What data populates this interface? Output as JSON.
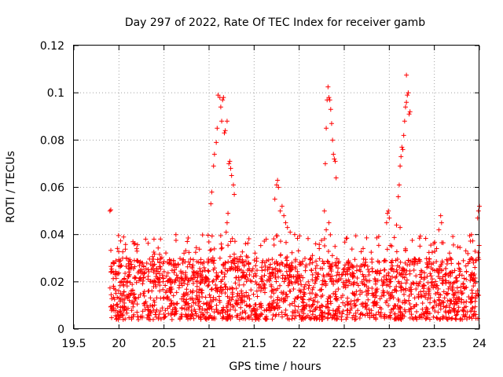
{
  "chart_data": {
    "type": "scatter",
    "title": "Day 297 of 2022, Rate Of TEC Index for receiver gamb",
    "xlabel": "GPS time / hours",
    "ylabel": "ROTI / TECUs",
    "xlim": [
      19.5,
      24
    ],
    "ylim": [
      0,
      0.12
    ],
    "xticks": [
      "19.5",
      "20",
      "20.5",
      "21",
      "21.5",
      "22",
      "22.5",
      "23",
      "23.5",
      "24"
    ],
    "yticks": [
      "0",
      "0.02",
      "0.04",
      "0.06",
      "0.08",
      "0.1",
      "0.12"
    ],
    "grid": true,
    "marker": "+",
    "color": "#ff0000",
    "series": [
      {
        "name": "ROTI",
        "description_bands": [
          {
            "x_from": 19.9,
            "x_to": 24.0,
            "y_min": 0.004,
            "y_max": 0.03,
            "density": "dense"
          },
          {
            "x_from": 19.9,
            "x_to": 24.0,
            "y_min": 0.02,
            "y_max": 0.04,
            "density": "sparse"
          }
        ],
        "points": [
          [
            19.9,
            0.05
          ],
          [
            19.91,
            0.0505
          ],
          [
            21.02,
            0.053
          ],
          [
            21.03,
            0.058
          ],
          [
            21.05,
            0.069
          ],
          [
            21.06,
            0.074
          ],
          [
            21.08,
            0.079
          ],
          [
            21.09,
            0.085
          ],
          [
            21.1,
            0.099
          ],
          [
            21.12,
            0.098
          ],
          [
            21.13,
            0.094
          ],
          [
            21.14,
            0.088
          ],
          [
            21.15,
            0.097
          ],
          [
            21.16,
            0.098
          ],
          [
            21.17,
            0.083
          ],
          [
            21.18,
            0.084
          ],
          [
            21.2,
            0.088
          ],
          [
            21.21,
            0.049
          ],
          [
            21.22,
            0.07
          ],
          [
            21.23,
            0.071
          ],
          [
            21.24,
            0.068
          ],
          [
            21.25,
            0.065
          ],
          [
            21.27,
            0.061
          ],
          [
            21.28,
            0.057
          ],
          [
            21.2,
            0.045
          ],
          [
            21.19,
            0.041
          ],
          [
            21.73,
            0.055
          ],
          [
            21.75,
            0.061
          ],
          [
            21.76,
            0.063
          ],
          [
            21.77,
            0.06
          ],
          [
            21.79,
            0.05
          ],
          [
            21.81,
            0.052
          ],
          [
            21.83,
            0.048
          ],
          [
            21.85,
            0.045
          ],
          [
            21.87,
            0.043
          ],
          [
            21.9,
            0.041
          ],
          [
            21.95,
            0.04
          ],
          [
            22.28,
            0.05
          ],
          [
            22.29,
            0.07
          ],
          [
            22.3,
            0.085
          ],
          [
            22.31,
            0.097
          ],
          [
            22.32,
            0.1025
          ],
          [
            22.33,
            0.098
          ],
          [
            22.34,
            0.097
          ],
          [
            22.35,
            0.093
          ],
          [
            22.36,
            0.087
          ],
          [
            22.37,
            0.08
          ],
          [
            22.38,
            0.074
          ],
          [
            22.39,
            0.072
          ],
          [
            22.4,
            0.071
          ],
          [
            22.41,
            0.064
          ],
          [
            22.33,
            0.045
          ],
          [
            22.3,
            0.042
          ],
          [
            22.97,
            0.045
          ],
          [
            22.98,
            0.049
          ],
          [
            22.99,
            0.05
          ],
          [
            23.0,
            0.047
          ],
          [
            23.08,
            0.044
          ],
          [
            23.1,
            0.056
          ],
          [
            23.11,
            0.061
          ],
          [
            23.12,
            0.069
          ],
          [
            23.13,
            0.073
          ],
          [
            23.14,
            0.077
          ],
          [
            23.15,
            0.076
          ],
          [
            23.16,
            0.082
          ],
          [
            23.17,
            0.088
          ],
          [
            23.18,
            0.094
          ],
          [
            23.19,
            0.096
          ],
          [
            23.2,
            0.099
          ],
          [
            23.21,
            0.1
          ],
          [
            23.22,
            0.091
          ],
          [
            23.23,
            0.092
          ],
          [
            23.19,
            0.1075
          ],
          [
            23.12,
            0.043
          ],
          [
            23.55,
            0.042
          ],
          [
            23.57,
            0.048
          ],
          [
            23.58,
            0.045
          ],
          [
            23.98,
            0.047
          ],
          [
            23.99,
            0.05
          ],
          [
            24.0,
            0.052
          ]
        ]
      }
    ]
  }
}
